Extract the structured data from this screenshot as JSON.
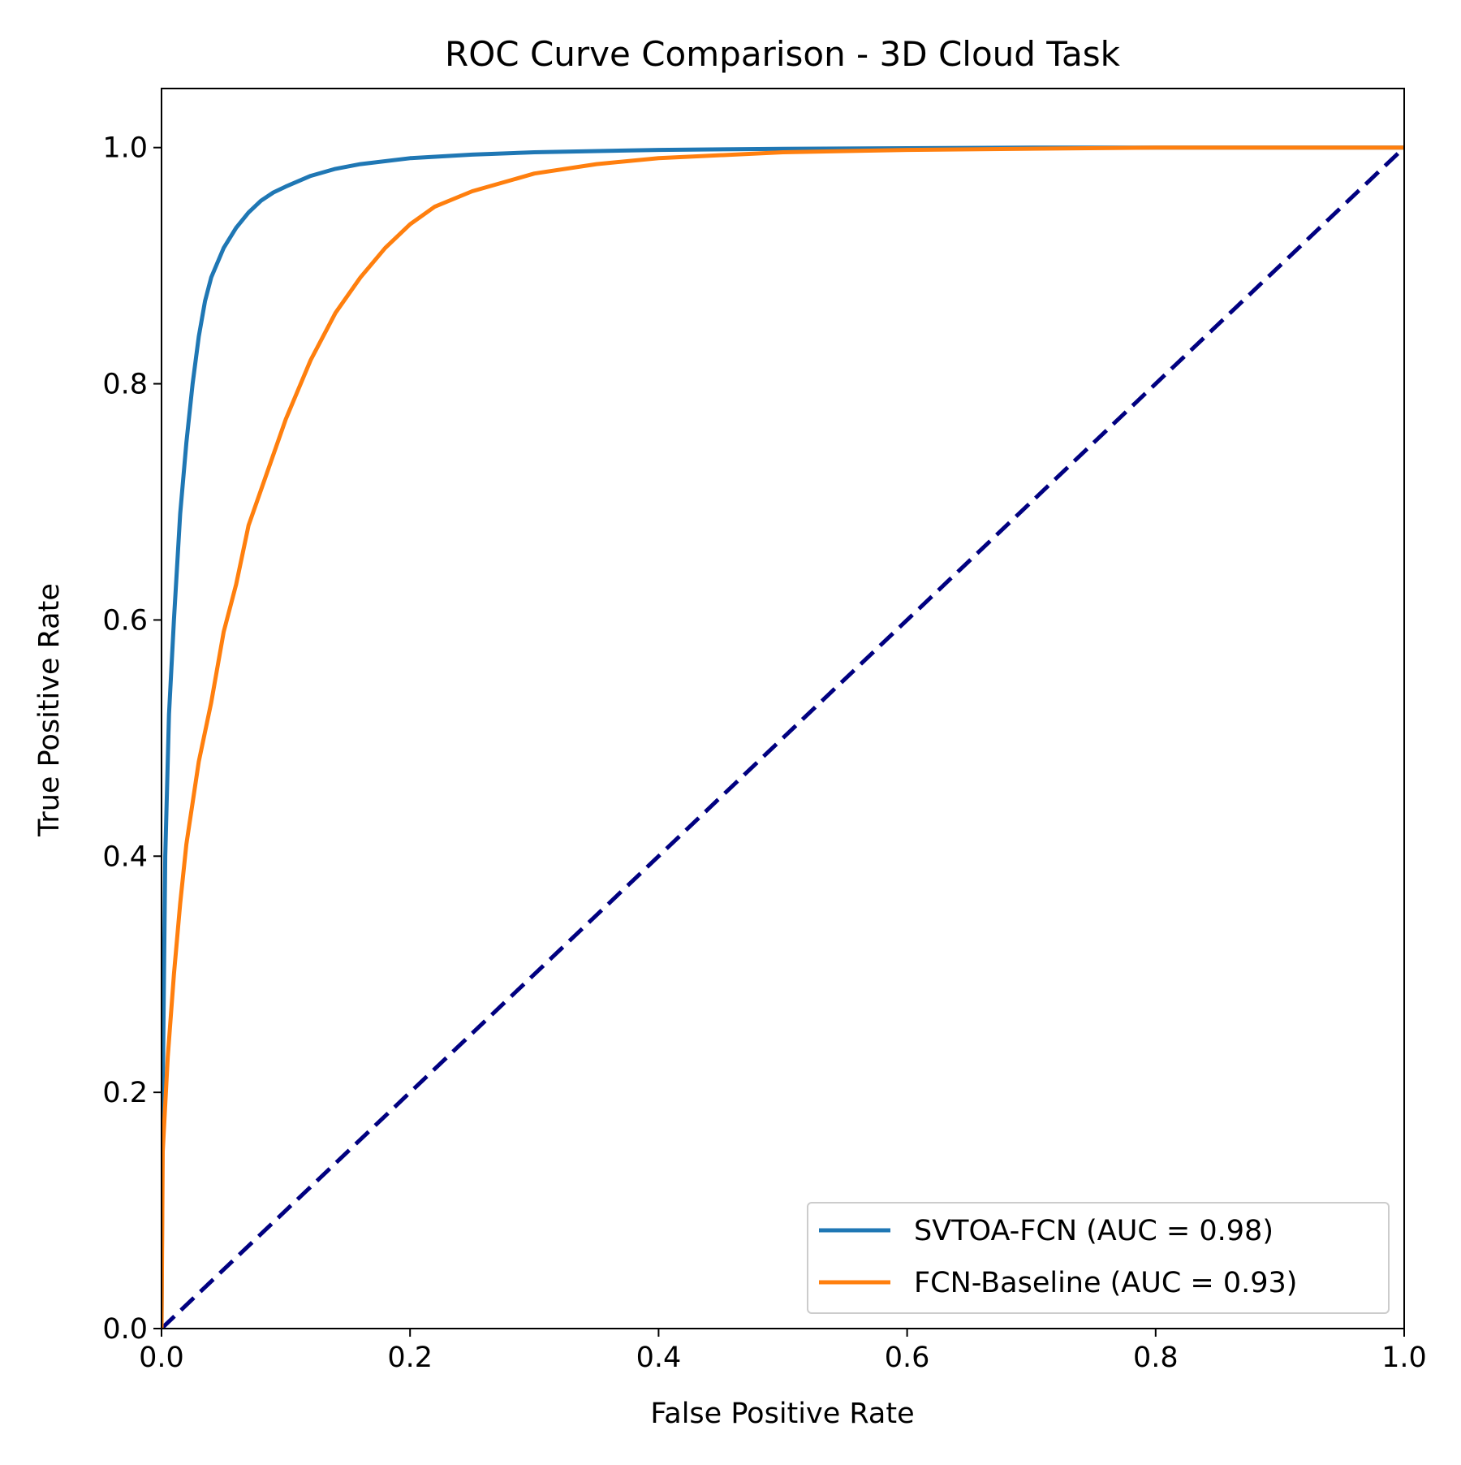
{
  "chart_data": {
    "type": "line",
    "title": "ROC Curve Comparison - 3D Cloud Task",
    "xlabel": "False Positive Rate",
    "ylabel": "True Positive Rate",
    "xlim": [
      0.0,
      1.0
    ],
    "ylim": [
      0.0,
      1.05
    ],
    "xticks": [
      0.0,
      0.2,
      0.4,
      0.6,
      0.8,
      1.0
    ],
    "xtick_labels": [
      "0.0",
      "0.2",
      "0.4",
      "0.6",
      "0.8",
      "1.0"
    ],
    "yticks": [
      0.0,
      0.2,
      0.4,
      0.6,
      0.8,
      1.0
    ],
    "ytick_labels": [
      "0.0",
      "0.2",
      "0.4",
      "0.6",
      "0.8",
      "1.0"
    ],
    "grid": false,
    "legend_position": "lower-right",
    "series": [
      {
        "name": "SVTOA-FCN (AUC = 0.98)",
        "color": "#1f77b4",
        "style": "solid",
        "x": [
          0.0,
          0.001,
          0.003,
          0.006,
          0.01,
          0.015,
          0.02,
          0.025,
          0.03,
          0.035,
          0.04,
          0.05,
          0.06,
          0.07,
          0.08,
          0.09,
          0.1,
          0.12,
          0.14,
          0.16,
          0.2,
          0.25,
          0.3,
          0.4,
          0.5,
          0.7,
          1.0
        ],
        "y": [
          0.0,
          0.2,
          0.4,
          0.52,
          0.6,
          0.69,
          0.75,
          0.8,
          0.84,
          0.87,
          0.89,
          0.915,
          0.932,
          0.945,
          0.955,
          0.962,
          0.967,
          0.976,
          0.982,
          0.986,
          0.991,
          0.994,
          0.996,
          0.998,
          0.999,
          1.0,
          1.0
        ]
      },
      {
        "name": "FCN-Baseline (AUC = 0.93)",
        "color": "#ff7f0e",
        "style": "solid",
        "x": [
          0.0,
          0.001,
          0.005,
          0.01,
          0.015,
          0.02,
          0.03,
          0.04,
          0.05,
          0.06,
          0.07,
          0.08,
          0.1,
          0.12,
          0.14,
          0.16,
          0.18,
          0.2,
          0.22,
          0.25,
          0.3,
          0.35,
          0.4,
          0.5,
          0.6,
          0.8,
          1.0
        ],
        "y": [
          0.0,
          0.15,
          0.23,
          0.3,
          0.36,
          0.41,
          0.48,
          0.53,
          0.59,
          0.63,
          0.68,
          0.71,
          0.77,
          0.82,
          0.86,
          0.89,
          0.915,
          0.935,
          0.95,
          0.963,
          0.978,
          0.986,
          0.991,
          0.996,
          0.998,
          1.0,
          1.0
        ]
      },
      {
        "name": "chance",
        "color": "#000080",
        "style": "dashed",
        "x": [
          0.0,
          1.0
        ],
        "y": [
          0.0,
          1.0
        ]
      }
    ],
    "legend": [
      {
        "label": "SVTOA-FCN (AUC = 0.98)",
        "color": "#1f77b4"
      },
      {
        "label": "FCN-Baseline (AUC = 0.93)",
        "color": "#ff7f0e"
      }
    ]
  }
}
